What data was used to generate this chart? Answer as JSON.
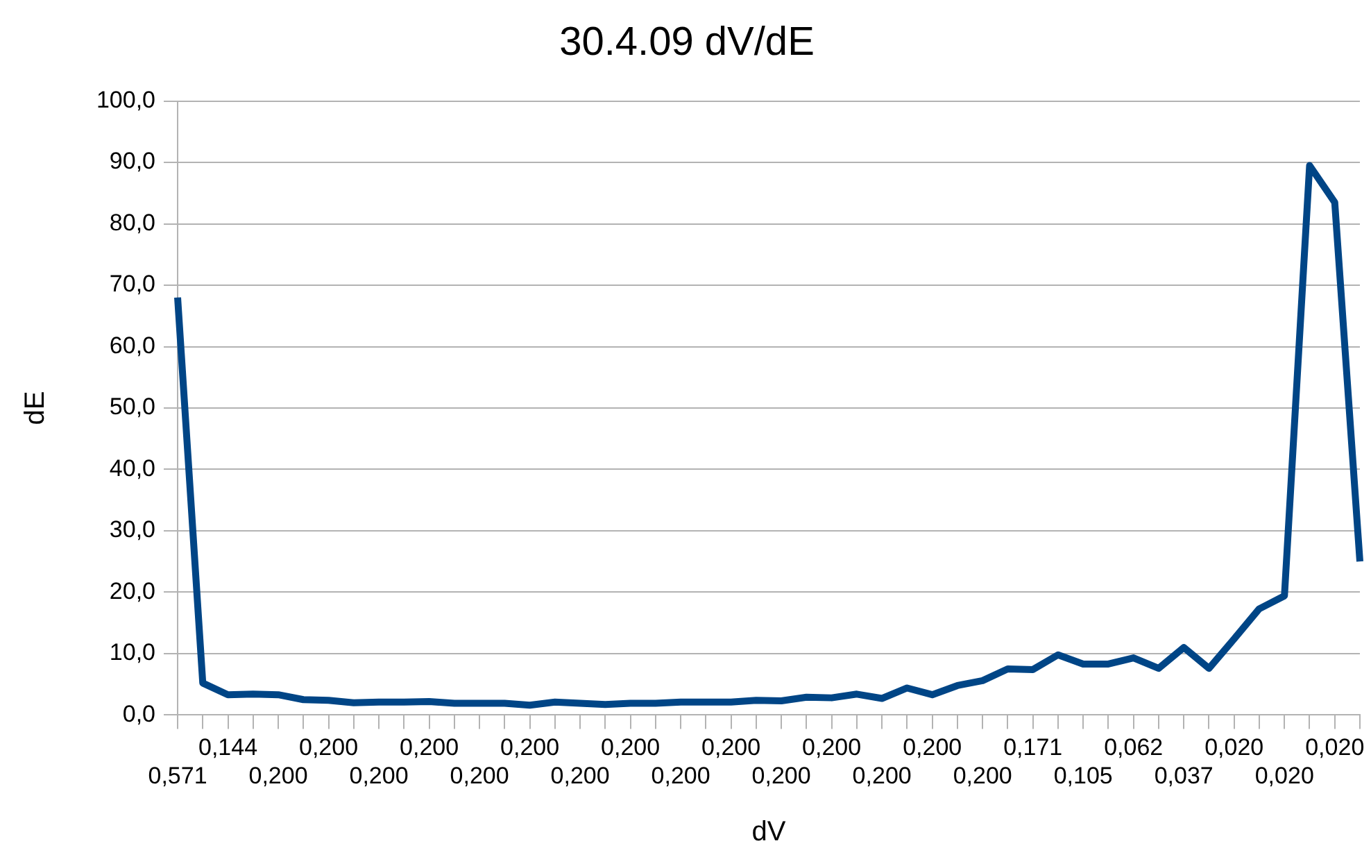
{
  "chart_data": {
    "type": "line",
    "title": "30.4.09 dV/dE",
    "xlabel": "dV",
    "ylabel": "dE",
    "categories": [
      "0,571",
      null,
      "0,144",
      null,
      "0,200",
      null,
      "0,200",
      null,
      "0,200",
      null,
      "0,200",
      null,
      "0,200",
      null,
      "0,200",
      null,
      "0,200",
      null,
      "0,200",
      null,
      "0,200",
      null,
      "0,200",
      null,
      "0,200",
      null,
      "0,200",
      null,
      "0,200",
      null,
      "0,200",
      null,
      "0,200",
      null,
      "0,171",
      null,
      "0,105",
      null,
      "0,062",
      null,
      "0,037",
      null,
      "0,020",
      null,
      "0,020",
      null,
      "0,020",
      null
    ],
    "series": [
      {
        "color": "#004586",
        "values": [
          68,
          5.2,
          3.3,
          3.4,
          3.3,
          2.5,
          2.4,
          2.0,
          2.1,
          2.1,
          2.2,
          1.9,
          1.9,
          1.9,
          1.6,
          2.1,
          1.9,
          1.7,
          1.9,
          1.9,
          2.1,
          2.1,
          2.1,
          2.4,
          2.3,
          2.9,
          2.8,
          3.4,
          2.7,
          4.4,
          3.3,
          4.8,
          5.6,
          7.5,
          7.4,
          9.8,
          8.3,
          8.3,
          9.3,
          7.6,
          11.0,
          7.6,
          12.4,
          17.3,
          19.4,
          89.5,
          83.5,
          25
        ]
      }
    ],
    "ylim": [
      0,
      100
    ],
    "yticks": [
      {
        "value": 0,
        "label": "0,0"
      },
      {
        "value": 10,
        "label": "10,0"
      },
      {
        "value": 20,
        "label": "20,0"
      },
      {
        "value": 30,
        "label": "30,0"
      },
      {
        "value": 40,
        "label": "40,0"
      },
      {
        "value": 50,
        "label": "50,0"
      },
      {
        "value": 60,
        "label": "60,0"
      },
      {
        "value": 70,
        "label": "70,0"
      },
      {
        "value": 80,
        "label": "80,0"
      },
      {
        "value": 90,
        "label": "90,0"
      },
      {
        "value": 100,
        "label": "100,0"
      }
    ],
    "grid": "y",
    "legend": false,
    "marker": "none",
    "line_style": "solid"
  }
}
